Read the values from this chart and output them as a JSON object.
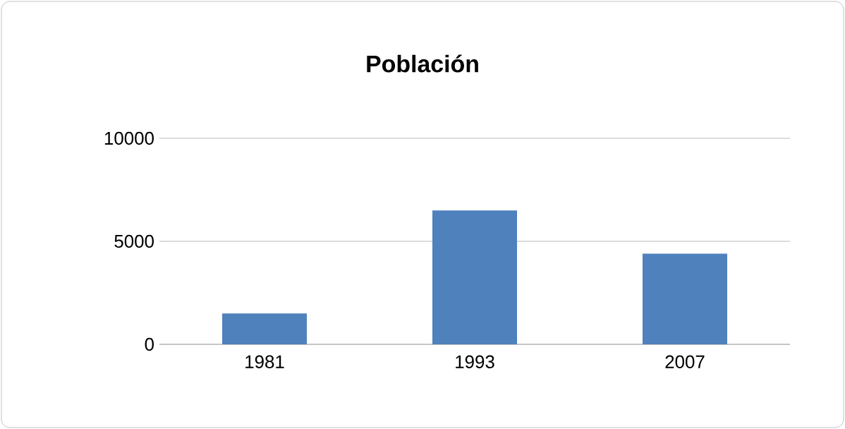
{
  "chart_data": {
    "type": "bar",
    "title": "Población",
    "categories": [
      "1981",
      "1993",
      "2007"
    ],
    "values": [
      1500,
      6500,
      4400
    ],
    "color": "#4f81bd",
    "ylim": [
      0,
      10000
    ],
    "yticks": [
      0,
      5000,
      10000
    ],
    "grid": "y"
  }
}
